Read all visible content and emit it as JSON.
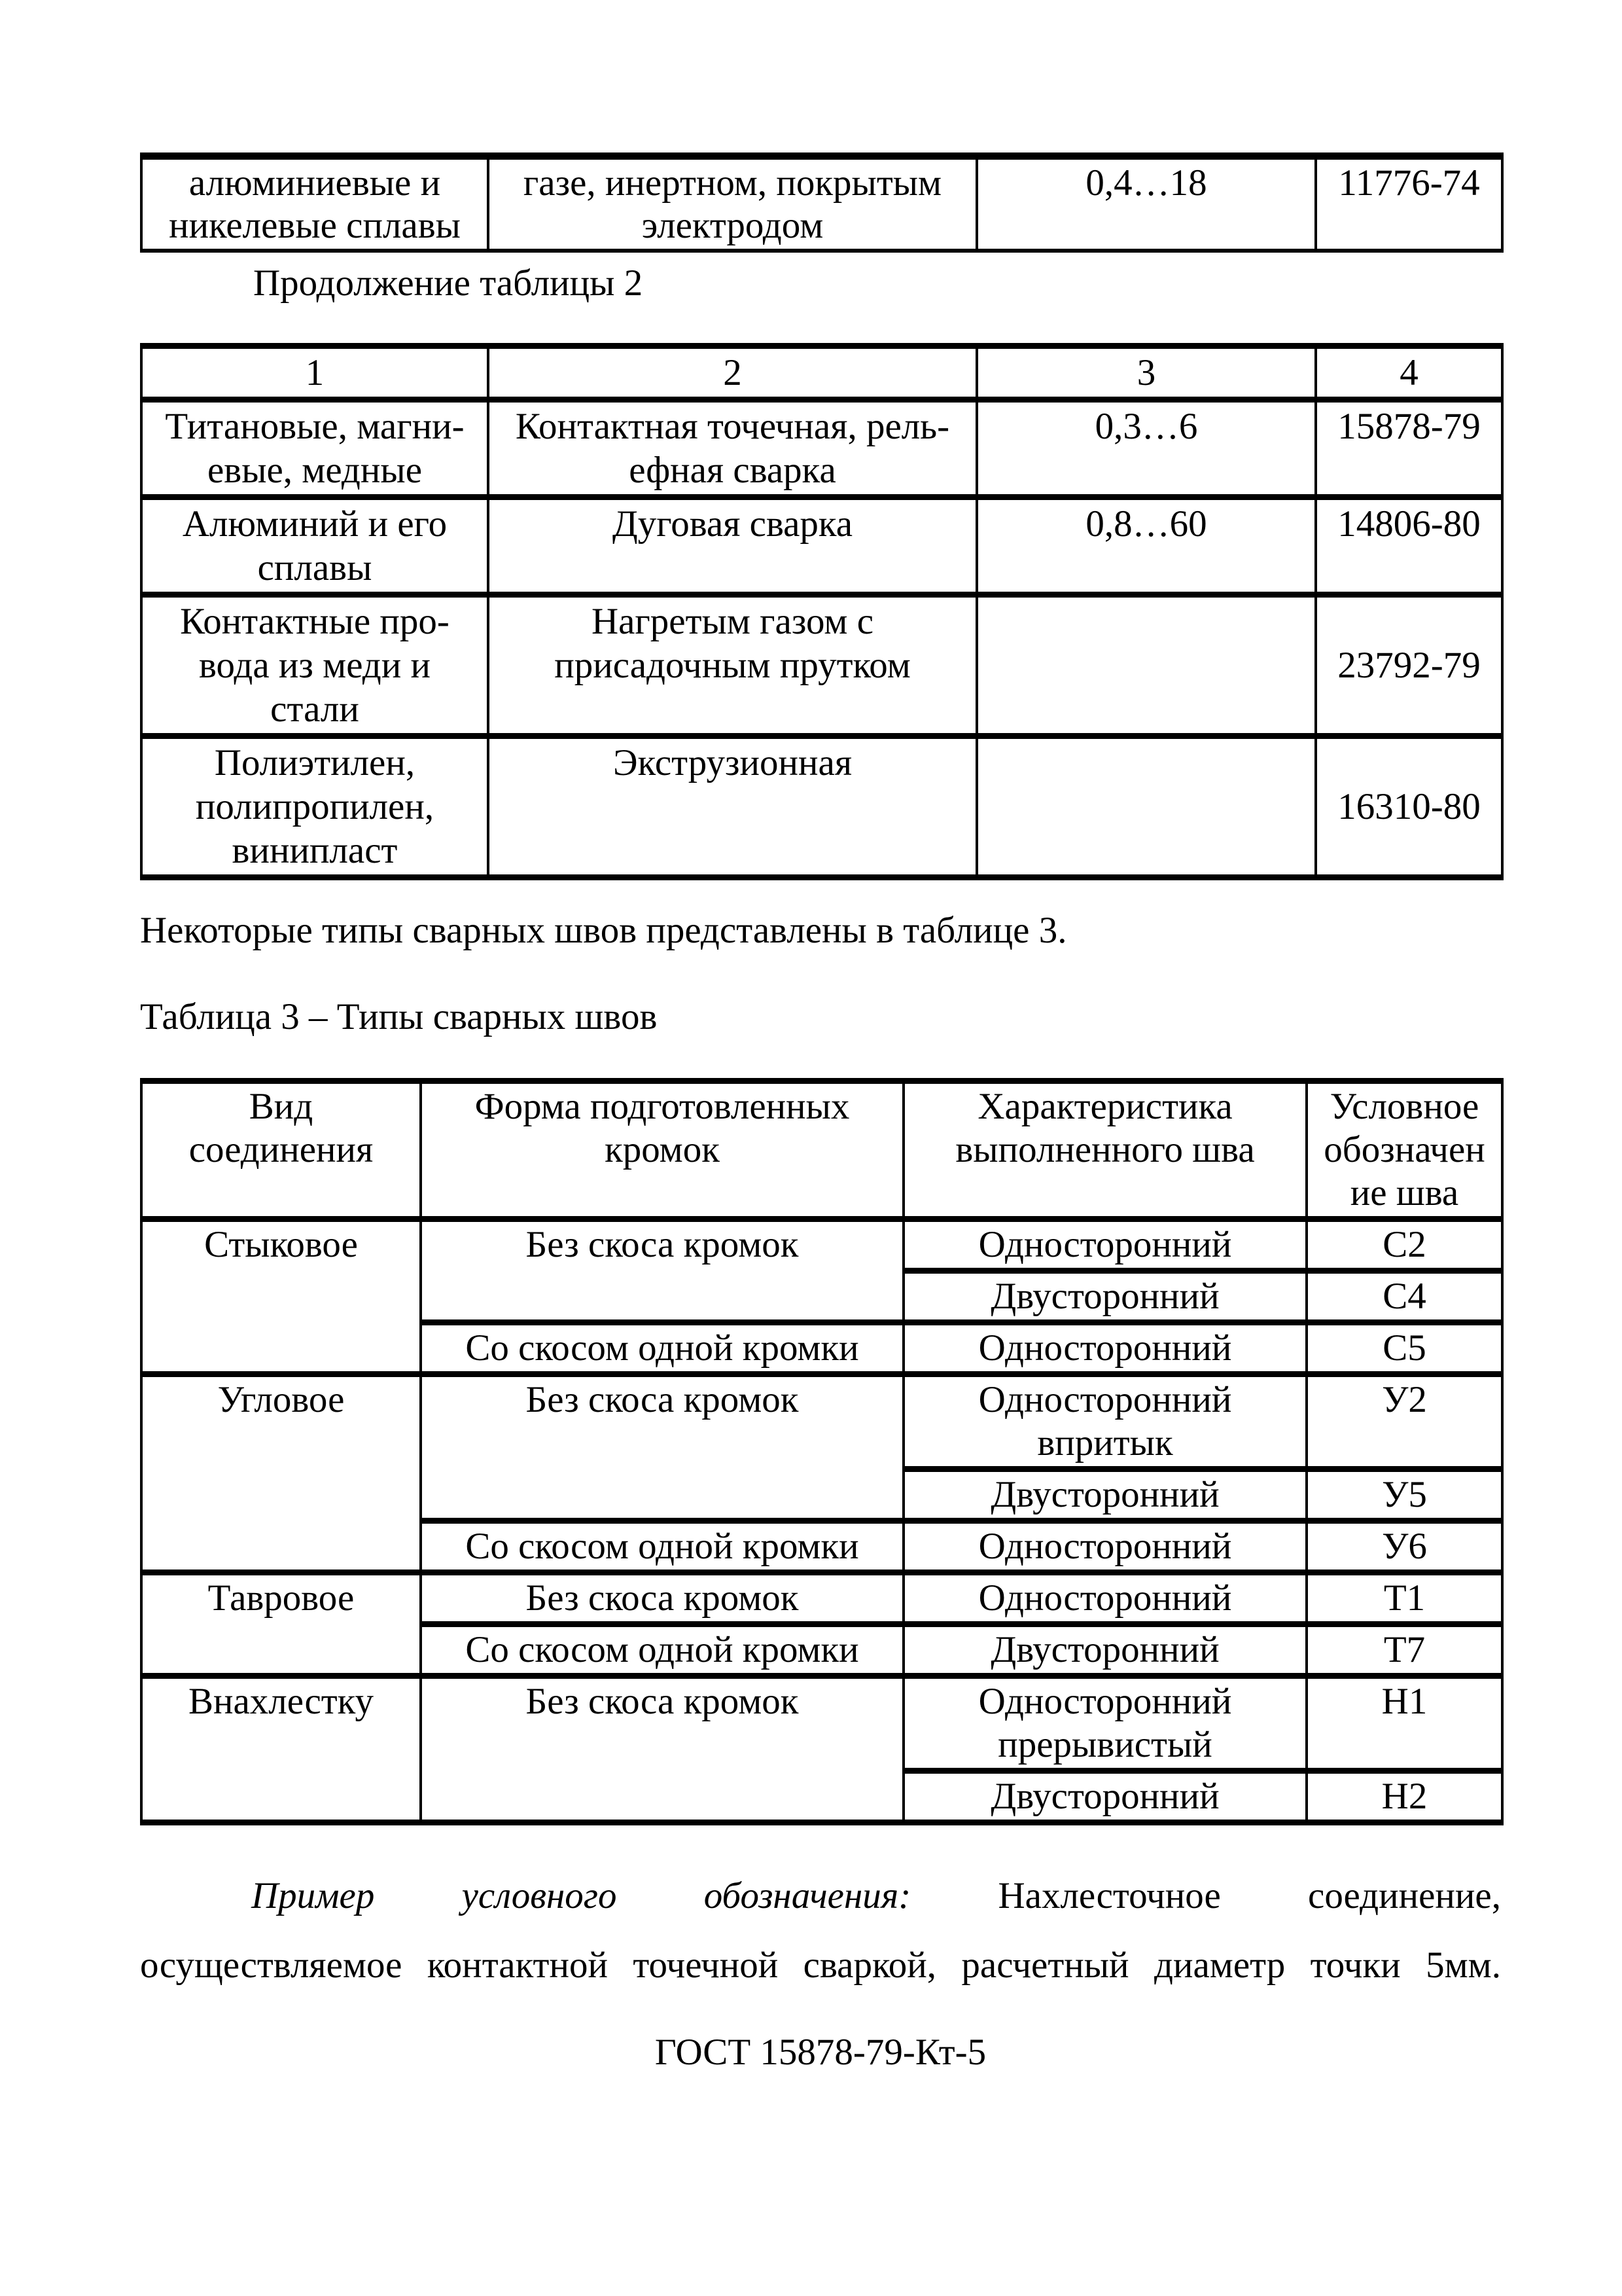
{
  "document": {
    "continuation_label": "Продолжение таблицы 2",
    "intro_paragraph": "Некоторые типы сварных швов представлены в таблице 3.",
    "table3_caption": "Таблица 3 – Типы сварных швов",
    "example_paragraph": {
      "line1_words": [
        "Пример",
        "условного",
        "обозначения:",
        "Нахлесточное",
        "соединение,"
      ],
      "line1_italic_count": 3,
      "line2": "осуществляемое контактной точечной сваркой, расчетный диаметр точки 5мм."
    },
    "gost_designation": "ГОСТ 15878-79-Кт-5"
  },
  "table2_fragment": {
    "rows": [
      {
        "cells": [
          {
            "text": "алюминиевые и\nникелевые сплавы"
          },
          {
            "text": "газе, инертном, покрытым\nэлектродом"
          },
          {
            "text": "0,4…18"
          },
          {
            "text": "11776-74"
          }
        ]
      }
    ]
  },
  "table2_continued": {
    "header": [
      "1",
      "2",
      "3",
      "4"
    ],
    "rows": [
      {
        "cells": [
          {
            "text": "Титановые, магни-\nевые, медные"
          },
          {
            "text": "Контактная точечная, рель-\nефная сварка"
          },
          {
            "text": "0,3…6"
          },
          {
            "text": "15878-79"
          }
        ]
      },
      {
        "cells": [
          {
            "text": "Алюминий и его\nсплавы"
          },
          {
            "text": "Дуговая сварка"
          },
          {
            "text": "0,8…60"
          },
          {
            "text": "14806-80"
          }
        ]
      },
      {
        "cells": [
          {
            "text": "Контактные про-\nвода из меди и\nстали"
          },
          {
            "text": "Нагретым газом с\nприсадочным прутком"
          },
          {
            "text": ""
          },
          {
            "text": "23792-79",
            "valign": "middle"
          }
        ]
      },
      {
        "cells": [
          {
            "text": "Полиэтилен,\nполипропилен,\nвинипласт"
          },
          {
            "text": "Экструзионная"
          },
          {
            "text": ""
          },
          {
            "text": "16310-80",
            "valign": "middle"
          }
        ]
      }
    ]
  },
  "table3": {
    "header": [
      "Вид\nсоединения",
      "Форма подготовленных\nкромок",
      "Характеристика\nвыполненного шва",
      "Условное\nобозначен\nие шва"
    ],
    "rows": [
      {
        "cells": [
          {
            "text": "Стыковое",
            "rowspan": 3
          },
          {
            "text": "Без скоса кромок",
            "rowspan": 2
          },
          {
            "text": "Односторонний"
          },
          {
            "text": "С2"
          }
        ]
      },
      {
        "cells": [
          {
            "text": "Двусторонний"
          },
          {
            "text": "С4"
          }
        ]
      },
      {
        "cells": [
          {
            "text": "Со скосом одной кромки"
          },
          {
            "text": "Односторонний"
          },
          {
            "text": "С5"
          }
        ]
      },
      {
        "cells": [
          {
            "text": "Угловое",
            "rowspan": 3
          },
          {
            "text": "Без скоса кромок",
            "rowspan": 2
          },
          {
            "text": "Односторонний\nвпритык"
          },
          {
            "text": "У2"
          }
        ]
      },
      {
        "cells": [
          {
            "text": "Двусторонний"
          },
          {
            "text": "У5"
          }
        ]
      },
      {
        "cells": [
          {
            "text": "Со скосом одной кромки"
          },
          {
            "text": "Односторонний"
          },
          {
            "text": "У6"
          }
        ]
      },
      {
        "cells": [
          {
            "text": "Тавровое",
            "rowspan": 2
          },
          {
            "text": "Без скоса кромок"
          },
          {
            "text": "Односторонний"
          },
          {
            "text": "Т1"
          }
        ]
      },
      {
        "cells": [
          {
            "text": "Со скосом одной кромки"
          },
          {
            "text": "Двусторонний"
          },
          {
            "text": "Т7"
          }
        ]
      },
      {
        "cells": [
          {
            "text": "Внахлестку",
            "rowspan": 2
          },
          {
            "text": "Без скоса кромок",
            "rowspan": 2
          },
          {
            "text": "Односторонний\nпрерывистый"
          },
          {
            "text": "Н1"
          }
        ]
      },
      {
        "cells": [
          {
            "text": "Двусторонний"
          },
          {
            "text": "Н2"
          }
        ]
      }
    ]
  }
}
